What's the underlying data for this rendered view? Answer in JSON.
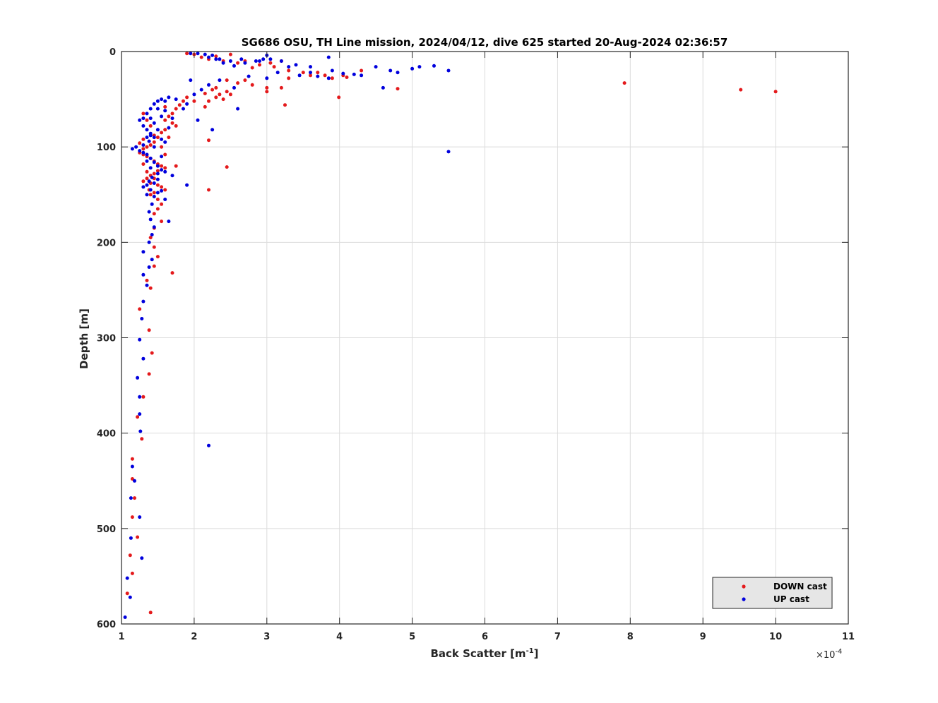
{
  "chart_data": {
    "type": "scatter",
    "title": "SG686 OSU, TH Line mission, 2024/04/12, dive 625 started 20-Aug-2024 02:36:57",
    "xlabel_main": "Back Scatter [m",
    "xlabel_sup": "-1",
    "xlabel_end": "]",
    "ylabel": "Depth [m]",
    "x_multiplier_prefix": "×10",
    "x_multiplier_exp": "-4",
    "xlim": [
      1,
      11
    ],
    "ylim": [
      0,
      600
    ],
    "y_reversed": true,
    "grid": true,
    "legend_position": "bottom-right",
    "xticks": [
      1,
      2,
      3,
      4,
      5,
      6,
      7,
      8,
      9,
      10,
      11
    ],
    "yticks": [
      0,
      100,
      200,
      300,
      400,
      500,
      600
    ],
    "series": [
      {
        "name": "DOWN cast",
        "color": "#e41a1c",
        "points": [
          [
            1.9,
            2
          ],
          [
            2.0,
            3
          ],
          [
            2.1,
            6
          ],
          [
            2.2,
            8
          ],
          [
            2.3,
            5
          ],
          [
            2.5,
            3
          ],
          [
            2.4,
            10
          ],
          [
            2.6,
            12
          ],
          [
            2.7,
            10
          ],
          [
            2.9,
            14
          ],
          [
            3.1,
            16
          ],
          [
            3.3,
            20
          ],
          [
            3.5,
            22
          ],
          [
            3.8,
            25
          ],
          [
            4.05,
            25
          ],
          [
            4.3,
            20
          ],
          [
            2.8,
            17
          ],
          [
            3.05,
            12
          ],
          [
            3.7,
            22
          ],
          [
            3.2,
            10
          ],
          [
            2.45,
            30
          ],
          [
            2.7,
            30
          ],
          [
            2.6,
            33
          ],
          [
            2.8,
            35
          ],
          [
            3.0,
            38
          ],
          [
            3.2,
            38
          ],
          [
            3.0,
            42
          ],
          [
            3.3,
            28
          ],
          [
            3.6,
            25
          ],
          [
            3.9,
            28
          ],
          [
            4.1,
            27
          ],
          [
            4.8,
            39
          ],
          [
            3.99,
            48
          ],
          [
            3.25,
            56
          ],
          [
            2.45,
            42
          ],
          [
            2.35,
            45
          ],
          [
            2.3,
            48
          ],
          [
            2.2,
            52
          ],
          [
            2.15,
            58
          ],
          [
            2.0,
            52
          ],
          [
            1.9,
            48
          ],
          [
            1.85,
            52
          ],
          [
            1.8,
            56
          ],
          [
            1.75,
            60
          ],
          [
            1.7,
            65
          ],
          [
            1.65,
            68
          ],
          [
            1.6,
            72
          ],
          [
            1.7,
            75
          ],
          [
            1.75,
            78
          ],
          [
            1.6,
            82
          ],
          [
            1.55,
            85
          ],
          [
            1.5,
            90
          ],
          [
            1.45,
            95
          ],
          [
            1.4,
            98
          ],
          [
            1.35,
            100
          ],
          [
            1.3,
            102
          ],
          [
            1.25,
            106
          ],
          [
            1.3,
            108
          ],
          [
            1.35,
            110
          ],
          [
            1.4,
            112
          ],
          [
            1.45,
            115
          ],
          [
            1.5,
            118
          ],
          [
            1.55,
            120
          ],
          [
            1.6,
            122
          ],
          [
            1.5,
            125
          ],
          [
            1.45,
            128
          ],
          [
            1.4,
            130
          ],
          [
            1.35,
            133
          ],
          [
            1.3,
            136
          ],
          [
            1.4,
            138
          ],
          [
            1.5,
            140
          ],
          [
            1.55,
            142
          ],
          [
            1.6,
            145
          ],
          [
            1.45,
            148
          ],
          [
            1.4,
            150
          ],
          [
            1.5,
            155
          ],
          [
            1.55,
            160
          ],
          [
            1.5,
            165
          ],
          [
            1.45,
            170
          ],
          [
            1.55,
            178
          ],
          [
            1.45,
            185
          ],
          [
            1.4,
            195
          ],
          [
            1.45,
            205
          ],
          [
            1.5,
            215
          ],
          [
            1.45,
            225
          ],
          [
            1.7,
            232
          ],
          [
            1.35,
            240
          ],
          [
            1.4,
            248
          ],
          [
            1.25,
            270
          ],
          [
            1.38,
            292
          ],
          [
            1.42,
            316
          ],
          [
            1.38,
            338
          ],
          [
            1.3,
            362
          ],
          [
            1.22,
            383
          ],
          [
            1.28,
            406
          ],
          [
            1.15,
            427
          ],
          [
            1.15,
            448
          ],
          [
            1.18,
            468
          ],
          [
            1.15,
            488
          ],
          [
            1.22,
            509
          ],
          [
            1.12,
            528
          ],
          [
            1.15,
            547
          ],
          [
            1.08,
            568
          ],
          [
            1.4,
            588
          ],
          [
            2.2,
            93
          ],
          [
            2.2,
            145
          ],
          [
            2.45,
            121
          ],
          [
            1.75,
            120
          ],
          [
            2.25,
            40
          ],
          [
            2.5,
            45
          ],
          [
            2.4,
            50
          ],
          [
            2.3,
            38
          ],
          [
            2.15,
            44
          ],
          [
            1.3,
            65
          ],
          [
            1.35,
            72
          ],
          [
            1.4,
            78
          ],
          [
            1.45,
            88
          ],
          [
            1.3,
            92
          ],
          [
            1.25,
            96
          ],
          [
            1.3,
            118
          ],
          [
            1.35,
            126
          ],
          [
            1.45,
            133
          ],
          [
            1.38,
            145
          ],
          [
            1.6,
            108
          ],
          [
            7.92,
            33
          ],
          [
            9.52,
            40
          ],
          [
            10.0,
            42
          ],
          [
            1.65,
            90
          ],
          [
            1.55,
            100
          ],
          [
            1.6,
            58
          ]
        ]
      },
      {
        "name": "UP cast",
        "color": "#0000dd",
        "points": [
          [
            1.95,
            2
          ],
          [
            2.05,
            2
          ],
          [
            2.15,
            3
          ],
          [
            2.25,
            4
          ],
          [
            2.3,
            8
          ],
          [
            2.4,
            12
          ],
          [
            2.55,
            15
          ],
          [
            2.7,
            12
          ],
          [
            2.9,
            10
          ],
          [
            3.0,
            4
          ],
          [
            3.05,
            8
          ],
          [
            3.2,
            10
          ],
          [
            3.4,
            14
          ],
          [
            3.6,
            16
          ],
          [
            3.9,
            20
          ],
          [
            4.05,
            23
          ],
          [
            4.3,
            25
          ],
          [
            4.5,
            16
          ],
          [
            4.7,
            20
          ],
          [
            4.8,
            22
          ],
          [
            5.0,
            18
          ],
          [
            5.1,
            16
          ],
          [
            5.3,
            15
          ],
          [
            5.5,
            20
          ],
          [
            4.6,
            38
          ],
          [
            3.85,
            6
          ],
          [
            3.45,
            25
          ],
          [
            3.7,
            26
          ],
          [
            3.3,
            16
          ],
          [
            2.95,
            8
          ],
          [
            2.85,
            10
          ],
          [
            2.65,
            8
          ],
          [
            2.5,
            10
          ],
          [
            2.35,
            8
          ],
          [
            2.2,
            6
          ],
          [
            2.6,
            60
          ],
          [
            2.2,
            35
          ],
          [
            2.1,
            40
          ],
          [
            2.0,
            45
          ],
          [
            1.9,
            55
          ],
          [
            1.85,
            60
          ],
          [
            1.75,
            50
          ],
          [
            1.65,
            48
          ],
          [
            1.55,
            50
          ],
          [
            1.5,
            52
          ],
          [
            1.45,
            55
          ],
          [
            1.4,
            60
          ],
          [
            1.35,
            65
          ],
          [
            1.3,
            70
          ],
          [
            1.25,
            72
          ],
          [
            1.3,
            78
          ],
          [
            1.35,
            82
          ],
          [
            1.4,
            86
          ],
          [
            1.45,
            90
          ],
          [
            1.38,
            94
          ],
          [
            1.3,
            98
          ],
          [
            1.2,
            100
          ],
          [
            1.15,
            102
          ],
          [
            1.25,
            104
          ],
          [
            1.3,
            106
          ],
          [
            1.35,
            108
          ],
          [
            1.4,
            112
          ],
          [
            1.45,
            116
          ],
          [
            1.5,
            120
          ],
          [
            1.55,
            124
          ],
          [
            1.5,
            128
          ],
          [
            1.42,
            132
          ],
          [
            1.38,
            136
          ],
          [
            1.35,
            140
          ],
          [
            1.3,
            142
          ],
          [
            1.4,
            145
          ],
          [
            1.5,
            148
          ],
          [
            1.45,
            152
          ],
          [
            1.42,
            160
          ],
          [
            1.38,
            168
          ],
          [
            1.4,
            176
          ],
          [
            1.45,
            184
          ],
          [
            1.42,
            192
          ],
          [
            1.38,
            200
          ],
          [
            1.3,
            210
          ],
          [
            1.42,
            218
          ],
          [
            1.38,
            226
          ],
          [
            1.3,
            234
          ],
          [
            1.35,
            245
          ],
          [
            1.3,
            262
          ],
          [
            1.28,
            280
          ],
          [
            1.25,
            302
          ],
          [
            1.3,
            322
          ],
          [
            1.22,
            342
          ],
          [
            1.25,
            362
          ],
          [
            1.25,
            380
          ],
          [
            1.26,
            398
          ],
          [
            1.15,
            435
          ],
          [
            1.18,
            450
          ],
          [
            1.13,
            468
          ],
          [
            1.25,
            488
          ],
          [
            1.13,
            510
          ],
          [
            1.28,
            531
          ],
          [
            1.08,
            552
          ],
          [
            1.12,
            572
          ],
          [
            1.05,
            593
          ],
          [
            2.2,
            413
          ],
          [
            5.5,
            105
          ],
          [
            2.25,
            82
          ],
          [
            1.9,
            140
          ],
          [
            1.65,
            178
          ],
          [
            1.6,
            155
          ],
          [
            1.7,
            130
          ],
          [
            1.55,
            110
          ],
          [
            1.6,
            95
          ],
          [
            1.65,
            80
          ],
          [
            1.7,
            70
          ],
          [
            1.6,
            62
          ],
          [
            1.55,
            68
          ],
          [
            1.45,
            75
          ],
          [
            1.5,
            82
          ],
          [
            1.4,
            88
          ],
          [
            1.55,
            92
          ],
          [
            1.45,
            100
          ],
          [
            1.35,
            115
          ],
          [
            1.4,
            122
          ],
          [
            1.45,
            138
          ],
          [
            1.55,
            146
          ],
          [
            1.35,
            150
          ],
          [
            1.5,
            134
          ],
          [
            1.6,
            126
          ],
          [
            1.35,
            90
          ],
          [
            1.4,
            70
          ],
          [
            1.5,
            60
          ],
          [
            1.6,
            52
          ],
          [
            3.85,
            28
          ],
          [
            4.2,
            24
          ],
          [
            3.6,
            22
          ],
          [
            3.0,
            28
          ],
          [
            2.35,
            30
          ],
          [
            2.75,
            26
          ],
          [
            3.15,
            22
          ],
          [
            2.05,
            72
          ],
          [
            1.95,
            30
          ],
          [
            2.55,
            38
          ]
        ]
      }
    ]
  }
}
